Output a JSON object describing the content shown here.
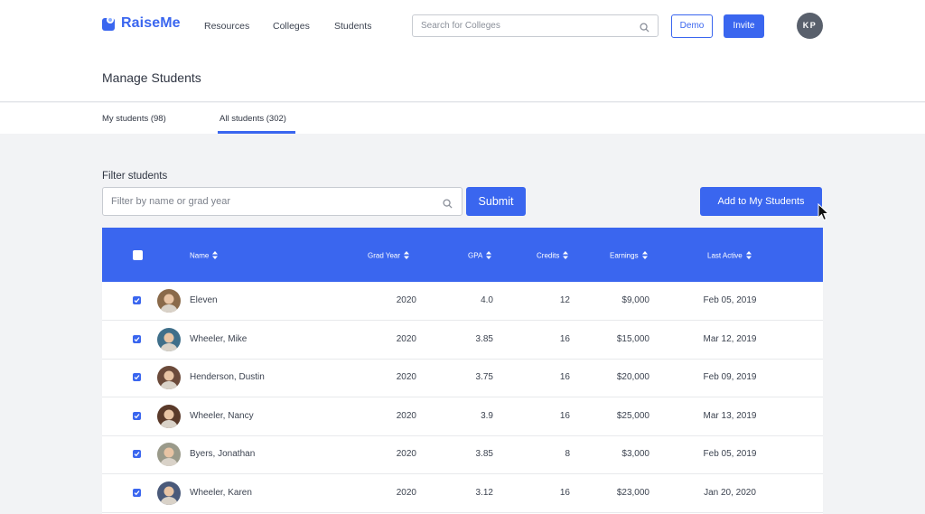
{
  "app": {
    "logo": "RaiseMe",
    "nav": [
      "Resources",
      "Colleges",
      "Students"
    ],
    "search_placeholder": "Search for Colleges",
    "demo_label": "Demo",
    "invite_label": "Invite",
    "user_initials": "KP"
  },
  "page": {
    "title": "Manage Students",
    "tabs": [
      {
        "label": "My students (98)",
        "active": false
      },
      {
        "label": "All students (302)",
        "active": true
      }
    ]
  },
  "filter": {
    "label": "Filter students",
    "placeholder": "Filter by name or grad year",
    "submit_label": "Submit",
    "add_label": "Add to My Students"
  },
  "table": {
    "headers": [
      "Name",
      "Grad Year",
      "GPA",
      "Credits",
      "Earnings",
      "Last Active"
    ],
    "rows": [
      {
        "name": "Eleven",
        "grad_year": "2020",
        "gpa": "4.0",
        "credits": "12",
        "earnings": "$9,000",
        "last_active": "Feb 05, 2019",
        "checked": true,
        "avatar_color": "#8a6a4a"
      },
      {
        "name": "Wheeler, Mike",
        "grad_year": "2020",
        "gpa": "3.85",
        "credits": "16",
        "earnings": "$15,000",
        "last_active": "Mar 12, 2019",
        "checked": true,
        "avatar_color": "#3f6f8a"
      },
      {
        "name": "Henderson, Dustin",
        "grad_year": "2020",
        "gpa": "3.75",
        "credits": "16",
        "earnings": "$20,000",
        "last_active": "Feb 09, 2019",
        "checked": true,
        "avatar_color": "#6b4a3a"
      },
      {
        "name": "Wheeler, Nancy",
        "grad_year": "2020",
        "gpa": "3.9",
        "credits": "16",
        "earnings": "$25,000",
        "last_active": "Mar 13, 2019",
        "checked": true,
        "avatar_color": "#5a3a2a"
      },
      {
        "name": "Byers, Jonathan",
        "grad_year": "2020",
        "gpa": "3.85",
        "credits": "8",
        "earnings": "$3,000",
        "last_active": "Feb 05, 2019",
        "checked": true,
        "avatar_color": "#9a9a8a"
      },
      {
        "name": "Wheeler, Karen",
        "grad_year": "2020",
        "gpa": "3.12",
        "credits": "16",
        "earnings": "$23,000",
        "last_active": "Jan 20, 2020",
        "checked": true,
        "avatar_color": "#4a5a7a"
      }
    ]
  },
  "colors": {
    "accent": "#3a66ef"
  }
}
